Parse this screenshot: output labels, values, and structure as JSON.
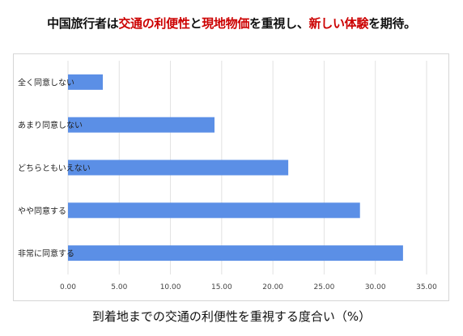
{
  "title": {
    "parts": [
      {
        "text": "中国旅行者は",
        "highlight": false
      },
      {
        "text": "交通の利便性",
        "highlight": true
      },
      {
        "text": "と",
        "highlight": false
      },
      {
        "text": "現地物価",
        "highlight": true
      },
      {
        "text": "を重視し、",
        "highlight": false
      },
      {
        "text": "新しい体験",
        "highlight": true
      },
      {
        "text": "を期待。",
        "highlight": false
      }
    ]
  },
  "colors": {
    "bar": "#5b8fe6",
    "highlight": "#cc0000",
    "grid": "#e2e2e2",
    "text": "#111111"
  },
  "chart_data": {
    "type": "bar",
    "orientation": "horizontal",
    "categories": [
      "全く同意しない",
      "あまり同意しない",
      "どちらともいえない",
      "やや同意する",
      "非常に同意する"
    ],
    "values": [
      3.4,
      14.3,
      21.5,
      28.5,
      32.7
    ],
    "xlabel": "到着地までの交通の利便性を重視する度合い（%）",
    "xlim": [
      0,
      35
    ],
    "xticks": [
      "0.00",
      "5.00",
      "10.00",
      "15.00",
      "20.00",
      "25.00",
      "30.00",
      "35.00"
    ],
    "grid": true
  }
}
